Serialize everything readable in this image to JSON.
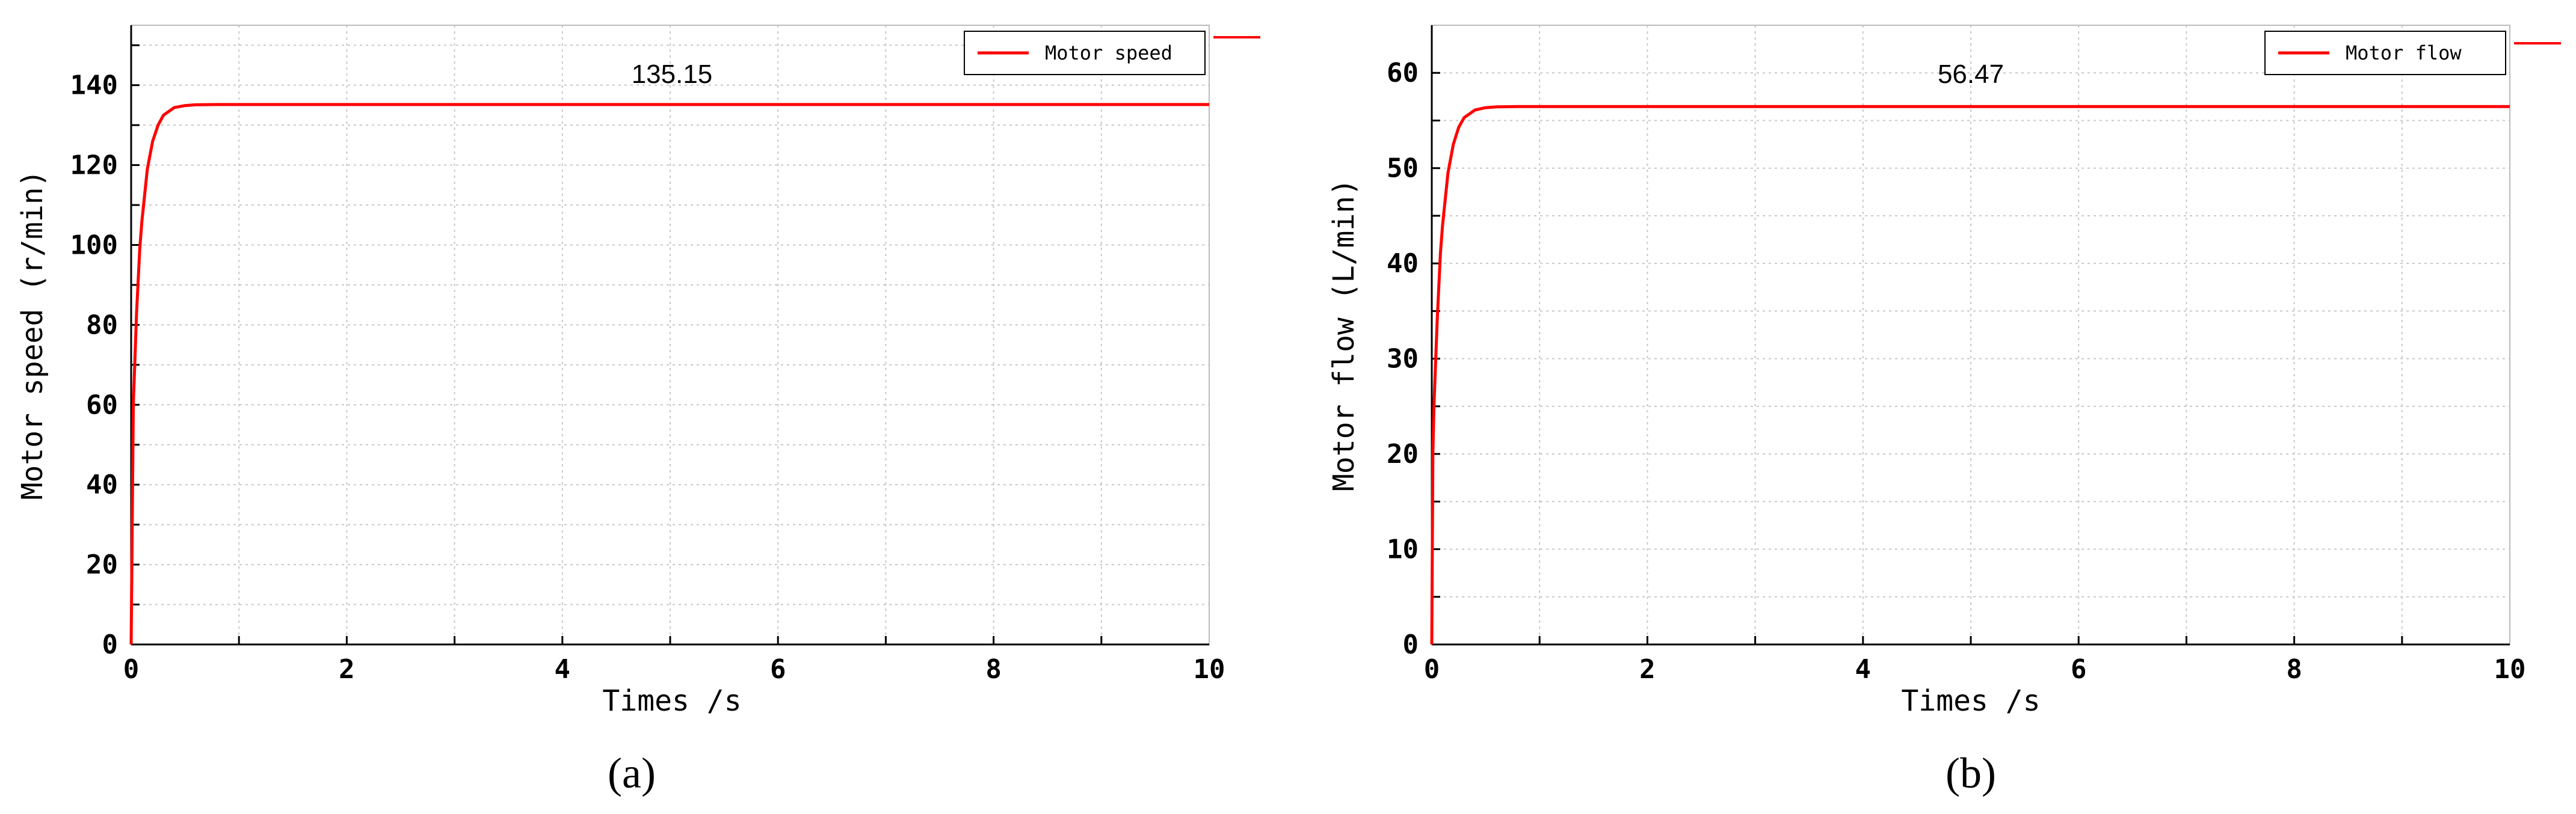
{
  "chart_data": [
    {
      "type": "line",
      "panel_label": "(a)",
      "xlabel": "Times /s",
      "ylabel": "Motor speed (r/min)",
      "xlim": [
        0,
        10
      ],
      "ylim": [
        0,
        155
      ],
      "xticks": [
        0,
        2,
        4,
        6,
        8,
        10
      ],
      "yticks": [
        0,
        20,
        40,
        60,
        80,
        100,
        120,
        140
      ],
      "grid": true,
      "legend_position": "top-right",
      "annotation": {
        "text": "135.15",
        "x": 5.0,
        "y": 135.15
      },
      "series": [
        {
          "name": "Motor speed",
          "color": "#ff0000",
          "x": [
            0,
            0.02,
            0.05,
            0.08,
            0.1,
            0.15,
            0.2,
            0.25,
            0.3,
            0.4,
            0.5,
            0.6,
            0.8,
            1,
            2,
            4,
            6,
            8,
            10
          ],
          "y": [
            0,
            60,
            83,
            99,
            106,
            119,
            126,
            130,
            132.5,
            134.4,
            134.9,
            135.1,
            135.15,
            135.15,
            135.15,
            135.15,
            135.15,
            135.15,
            135.15
          ]
        }
      ]
    },
    {
      "type": "line",
      "panel_label": "(b)",
      "xlabel": "Times /s",
      "ylabel": "Motor flow (L/min)",
      "xlim": [
        0,
        10
      ],
      "ylim": [
        0,
        65
      ],
      "xticks": [
        0,
        2,
        4,
        6,
        8,
        10
      ],
      "yticks": [
        0,
        10,
        20,
        30,
        40,
        50,
        60
      ],
      "grid": true,
      "legend_position": "top-right",
      "annotation": {
        "text": "56.47",
        "x": 5.0,
        "y": 56.47
      },
      "series": [
        {
          "name": "Motor flow",
          "color": "#ff0000",
          "x": [
            0,
            0.01,
            0.02,
            0.05,
            0.08,
            0.1,
            0.15,
            0.2,
            0.25,
            0.3,
            0.4,
            0.5,
            0.6,
            0.8,
            1,
            2,
            4,
            6,
            8,
            10
          ],
          "y": [
            0,
            20,
            25,
            34,
            41,
            44,
            49.5,
            52.5,
            54.3,
            55.3,
            56.1,
            56.35,
            56.43,
            56.47,
            56.47,
            56.47,
            56.47,
            56.47,
            56.47,
            56.47
          ]
        }
      ]
    }
  ]
}
